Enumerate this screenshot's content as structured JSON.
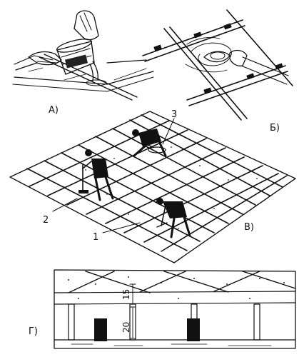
{
  "panels": {
    "a": {
      "label": "А)"
    },
    "b": {
      "label": "Б)"
    },
    "v": {
      "label": "В)",
      "callouts": {
        "one": "1",
        "two": "2",
        "three": "3"
      }
    },
    "g": {
      "label": "Г)",
      "dims": {
        "top": "15",
        "bottom": "20"
      }
    }
  }
}
